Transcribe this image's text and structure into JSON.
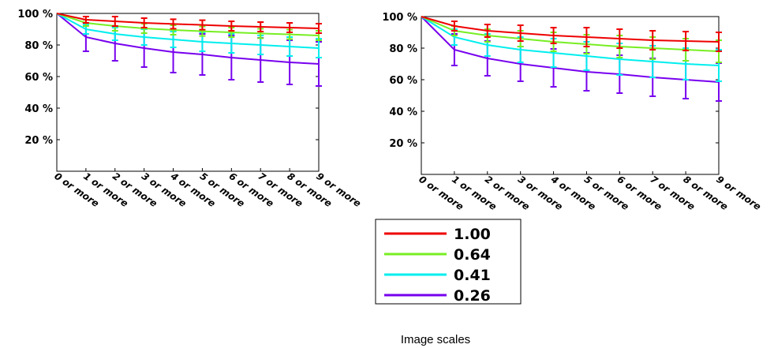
{
  "caption": "Image scales",
  "colors": {
    "1.00": "#ee0000",
    "0.64": "#77ee22",
    "0.41": "#00eeee",
    "0.26": "#7700ee"
  },
  "chart_data": [
    {
      "type": "line",
      "title": "",
      "xlabel": "",
      "ylabel": "",
      "categories": [
        "0 or more",
        "1 or more",
        "2 or more",
        "3 or more",
        "4 or more",
        "5 or more",
        "6 or more",
        "7 or more",
        "8 or more",
        "9 or more"
      ],
      "ylim": [
        0,
        100
      ],
      "yticks": [
        "20 %",
        "40 %",
        "60 %",
        "80 %",
        "100 %"
      ],
      "ytick_values": [
        20,
        40,
        60,
        80,
        100
      ],
      "grid": false,
      "series": [
        {
          "name": "1.00",
          "color": "#ee0000",
          "values": [
            100,
            96,
            95,
            94,
            93.3,
            92.7,
            92,
            91.5,
            91,
            90.5
          ],
          "err_low": [
            0,
            2,
            3,
            3,
            3,
            3,
            3,
            3,
            3,
            3
          ],
          "err_high": [
            0,
            2,
            3,
            3,
            3,
            3,
            3,
            3,
            3,
            3
          ]
        },
        {
          "name": "0.64",
          "color": "#77ee22",
          "values": [
            100,
            94,
            92,
            90.5,
            89.5,
            88.7,
            88,
            87.3,
            86.7,
            86
          ],
          "err_low": [
            0,
            2,
            3,
            3,
            3,
            3,
            3,
            3,
            3,
            3
          ],
          "err_high": [
            0,
            2,
            3,
            3,
            3,
            3,
            3,
            3,
            3,
            3
          ]
        },
        {
          "name": "0.41",
          "color": "#00eeee",
          "values": [
            100,
            90,
            87,
            85,
            83.5,
            82,
            81,
            80,
            79,
            78
          ],
          "err_low": [
            0,
            3,
            4,
            5,
            5,
            6,
            6,
            6,
            6,
            6
          ],
          "err_high": [
            0,
            3,
            4,
            5,
            5,
            6,
            6,
            6,
            6,
            6
          ]
        },
        {
          "name": "0.26",
          "color": "#7700ee",
          "values": [
            100,
            85,
            81,
            78,
            75.5,
            74,
            72,
            70.5,
            69,
            68
          ],
          "err_low": [
            0,
            9,
            11,
            12,
            13,
            13,
            14,
            14,
            14,
            14
          ],
          "err_high": [
            0,
            9,
            11,
            12,
            13,
            13,
            14,
            14,
            14,
            14
          ]
        }
      ]
    },
    {
      "type": "line",
      "title": "",
      "xlabel": "",
      "ylabel": "",
      "categories": [
        "0 or more",
        "1 or more",
        "2 or more",
        "3 or more",
        "4 or more",
        "5 or more",
        "6 or more",
        "7 or more",
        "8 or more",
        "9 or more"
      ],
      "ylim": [
        0,
        100
      ],
      "yticks": [
        "20 %",
        "40 %",
        "60 %",
        "80 %",
        "100 %"
      ],
      "ytick_values": [
        20,
        40,
        60,
        80,
        100
      ],
      "grid": false,
      "series": [
        {
          "name": "1.00",
          "color": "#ee0000",
          "values": [
            100,
            94,
            91,
            89.5,
            88,
            87,
            86,
            85,
            84.5,
            84
          ],
          "err_low": [
            0,
            3,
            4,
            5,
            5,
            6,
            6,
            6,
            6,
            6
          ],
          "err_high": [
            0,
            3,
            4,
            5,
            5,
            6,
            6,
            6,
            6,
            6
          ]
        },
        {
          "name": "0.64",
          "color": "#77ee22",
          "values": [
            100,
            91,
            88,
            86,
            84,
            82.5,
            81,
            80,
            79,
            78
          ],
          "err_low": [
            0,
            3,
            4,
            5,
            6,
            6,
            7,
            7,
            7,
            7
          ],
          "err_high": [
            0,
            3,
            4,
            5,
            6,
            6,
            7,
            7,
            7,
            7
          ]
        },
        {
          "name": "0.41",
          "color": "#00eeee",
          "values": [
            100,
            87,
            82,
            79,
            77,
            75,
            73,
            71.5,
            70,
            69
          ],
          "err_low": [
            0,
            5,
            7,
            8,
            9,
            9,
            10,
            10,
            10,
            10
          ],
          "err_high": [
            0,
            5,
            7,
            8,
            9,
            9,
            10,
            10,
            10,
            10
          ]
        },
        {
          "name": "0.26",
          "color": "#7700ee",
          "values": [
            100,
            79,
            73.5,
            70,
            67.5,
            65,
            63.5,
            61.5,
            60,
            58.5
          ],
          "err_low": [
            0,
            10,
            11,
            11,
            12,
            12,
            12,
            12,
            12,
            12
          ],
          "err_high": [
            0,
            10,
            11,
            11,
            12,
            12,
            12,
            12,
            12,
            12
          ]
        }
      ]
    }
  ],
  "legend": {
    "placement": "bottom-center",
    "entries": [
      {
        "label": "1.00",
        "color": "#ee0000"
      },
      {
        "label": "0.64",
        "color": "#77ee22"
      },
      {
        "label": "0.41",
        "color": "#00eeee"
      },
      {
        "label": "0.26",
        "color": "#7700ee"
      }
    ]
  }
}
